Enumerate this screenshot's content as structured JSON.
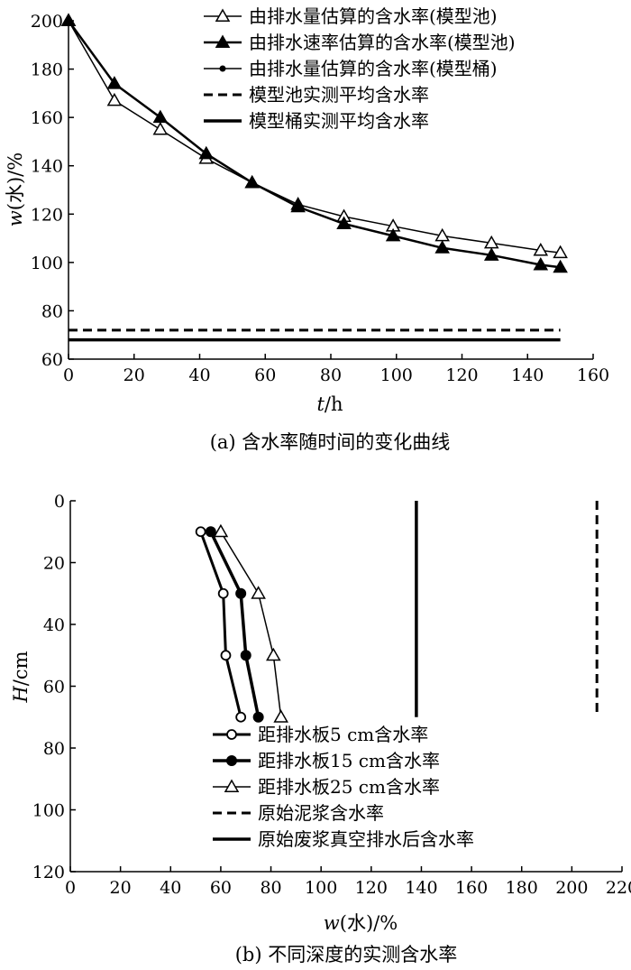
{
  "chart_data": [
    {
      "type": "line",
      "caption": "(a) 含水率随时间的变化曲线",
      "xlabel": {
        "italic": "t",
        "rest": "/h"
      },
      "ylabel": {
        "italic": "w",
        "rest": "(水)/%"
      },
      "xlim": [
        0,
        160
      ],
      "ylim": [
        60,
        200
      ],
      "xticks": [
        0,
        20,
        40,
        60,
        80,
        100,
        120,
        140,
        160
      ],
      "yticks": [
        60,
        80,
        100,
        120,
        140,
        160,
        180,
        200
      ],
      "grid": false,
      "legend_position": "top-right",
      "series": [
        {
          "name": "由排水量估算的含水率(模型池)",
          "marker": "triangle-open",
          "x": [
            0,
            14,
            28,
            42,
            56,
            70,
            84,
            99,
            114,
            129,
            144,
            150
          ],
          "y": [
            200,
            167,
            155,
            143,
            133,
            124,
            119,
            115,
            111,
            108,
            105,
            104
          ]
        },
        {
          "name": "由排水速率估算的含水率(模型池)",
          "marker": "triangle-filled",
          "x": [
            0,
            14,
            28,
            42,
            56,
            70,
            84,
            99,
            114,
            129,
            144,
            150
          ],
          "y": [
            200,
            174,
            160,
            145,
            133,
            123,
            116,
            111,
            106,
            103,
            99,
            98
          ]
        },
        {
          "name": "由排水量估算的含水率(模型桶)",
          "marker": "dot",
          "x": [],
          "y": []
        },
        {
          "name": "模型池实测平均含水率",
          "marker": "dashed",
          "x": [
            0,
            150
          ],
          "y": [
            72,
            72
          ]
        },
        {
          "name": "模型桶实测平均含水率",
          "marker": "solid",
          "x": [
            0,
            150
          ],
          "y": [
            68,
            68
          ]
        }
      ]
    },
    {
      "type": "line",
      "caption": "(b) 不同深度的实测含水率",
      "xlabel": {
        "italic": "w",
        "rest": "(水)/%"
      },
      "ylabel": {
        "italic": "H",
        "rest": "/cm"
      },
      "xlim": [
        0,
        220
      ],
      "ylim": [
        0,
        120
      ],
      "y_inverted": true,
      "xticks": [
        0,
        20,
        40,
        60,
        80,
        100,
        120,
        140,
        160,
        180,
        200,
        220
      ],
      "yticks": [
        0,
        20,
        40,
        60,
        80,
        100,
        120
      ],
      "grid": false,
      "legend_position": "bottom-left",
      "series": [
        {
          "name": "距排水板5 cm含水率",
          "marker": "circle-open",
          "x": [
            52,
            61,
            62,
            68
          ],
          "y": [
            10,
            30,
            50,
            70
          ]
        },
        {
          "name": "距排水板15 cm含水率",
          "marker": "circle-filled",
          "x": [
            56,
            68,
            70,
            75
          ],
          "y": [
            10,
            30,
            50,
            70
          ]
        },
        {
          "name": "距排水板25 cm含水率",
          "marker": "triangle-open",
          "x": [
            60,
            75,
            81,
            84
          ],
          "y": [
            10,
            30,
            50,
            70
          ]
        },
        {
          "name": "原始泥浆含水率",
          "marker": "dashed",
          "x": [
            210,
            210
          ],
          "y": [
            0,
            70
          ]
        },
        {
          "name": "原始废浆真空排水后含水率",
          "marker": "solid",
          "x": [
            138,
            138
          ],
          "y": [
            0,
            70
          ]
        }
      ]
    }
  ]
}
